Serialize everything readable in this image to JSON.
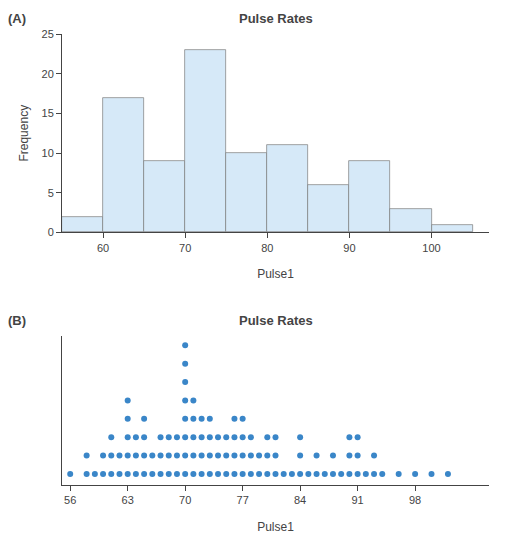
{
  "chart_data": [
    {
      "type": "histogram",
      "title": "Pulse Rates",
      "annotation": "(A)",
      "xlabel": "Pulse1",
      "ylabel": "Frequency",
      "bins": [
        55,
        60,
        65,
        70,
        75,
        80,
        85,
        90,
        95,
        100,
        105
      ],
      "values": [
        2,
        17,
        9,
        23,
        10,
        11,
        6,
        9,
        3,
        1
      ],
      "color": "#d6e9f8",
      "xlim": [
        55,
        107
      ],
      "xticks": [
        60,
        70,
        80,
        90,
        100
      ],
      "ylim": [
        0,
        25
      ],
      "yticks": [
        0,
        5,
        10,
        15,
        20,
        25
      ],
      "grid": false
    },
    {
      "type": "dot",
      "title": "Pulse Rates",
      "annotation": "(B)",
      "xlabel": "Pulse1",
      "x": [
        56,
        58,
        59,
        60,
        61,
        62,
        63,
        64,
        65,
        66,
        67,
        68,
        69,
        70,
        71,
        72,
        73,
        74,
        75,
        76,
        77,
        78,
        79,
        80,
        81,
        82,
        83,
        84,
        85,
        86,
        87,
        88,
        89,
        90,
        91,
        92,
        93,
        94,
        96,
        98,
        100,
        102
      ],
      "values": [
        1,
        2,
        1,
        2,
        3,
        2,
        5,
        3,
        4,
        2,
        3,
        3,
        3,
        8,
        5,
        4,
        4,
        3,
        3,
        4,
        4,
        3,
        2,
        3,
        3,
        1,
        1,
        3,
        1,
        2,
        1,
        2,
        1,
        3,
        3,
        1,
        2,
        1,
        1,
        1,
        1,
        1
      ],
      "color": "#3a86c8",
      "marker": "circle",
      "xlim": [
        55,
        107
      ],
      "xticks": [
        56,
        63,
        70,
        77,
        84,
        91,
        98
      ],
      "ylim": [
        0.4,
        8.5
      ],
      "yticks": [],
      "tick_labels": "x",
      "grid": false
    }
  ]
}
